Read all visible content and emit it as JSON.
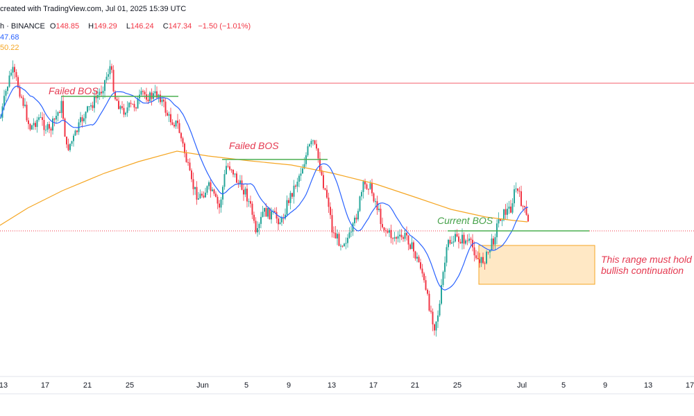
{
  "header": {
    "credit": "created with TradingView.com, Jul 01, 2025 15:39 UTC",
    "symbol_tail": "h",
    "exchange": "BINANCE",
    "ohlc": [
      {
        "label": "O",
        "value": "148.85"
      },
      {
        "label": "H",
        "value": "149.29"
      },
      {
        "label": "L",
        "value": "146.24"
      },
      {
        "label": "C",
        "value": "147.34"
      }
    ],
    "change": "−1.50 (−1.01%)",
    "ma_fast_value": "47.68",
    "ma_slow_value": "50.22"
  },
  "annotations": {
    "failed_bos_1": "Failed BOS",
    "failed_bos_2": "Failed BOS",
    "current_bos": "Current BOS",
    "range_note_line1": "This range must hold",
    "range_note_line2": "bullish continuation"
  },
  "x_axis_labels": [
    "13",
    "17",
    "21",
    "25",
    "Jun",
    "5",
    "9",
    "13",
    "17",
    "21",
    "25",
    "Jul",
    "5",
    "9",
    "13",
    "17"
  ],
  "colors": {
    "up": "#26a69a",
    "down": "#f23645",
    "ma_fast": "#2962ff",
    "ma_slow": "#f5a623",
    "resistance": "#f23645",
    "bos_line": "#4caf50",
    "range_fill": "#ffe0b2",
    "range_border": "#f5a623"
  },
  "chart_data": {
    "type": "candlestick",
    "interval": "4h",
    "overlays": [
      "moving-average-fast",
      "moving-average-slow",
      "horizontal-resistance",
      "bos-levels",
      "demand-range"
    ]
  }
}
